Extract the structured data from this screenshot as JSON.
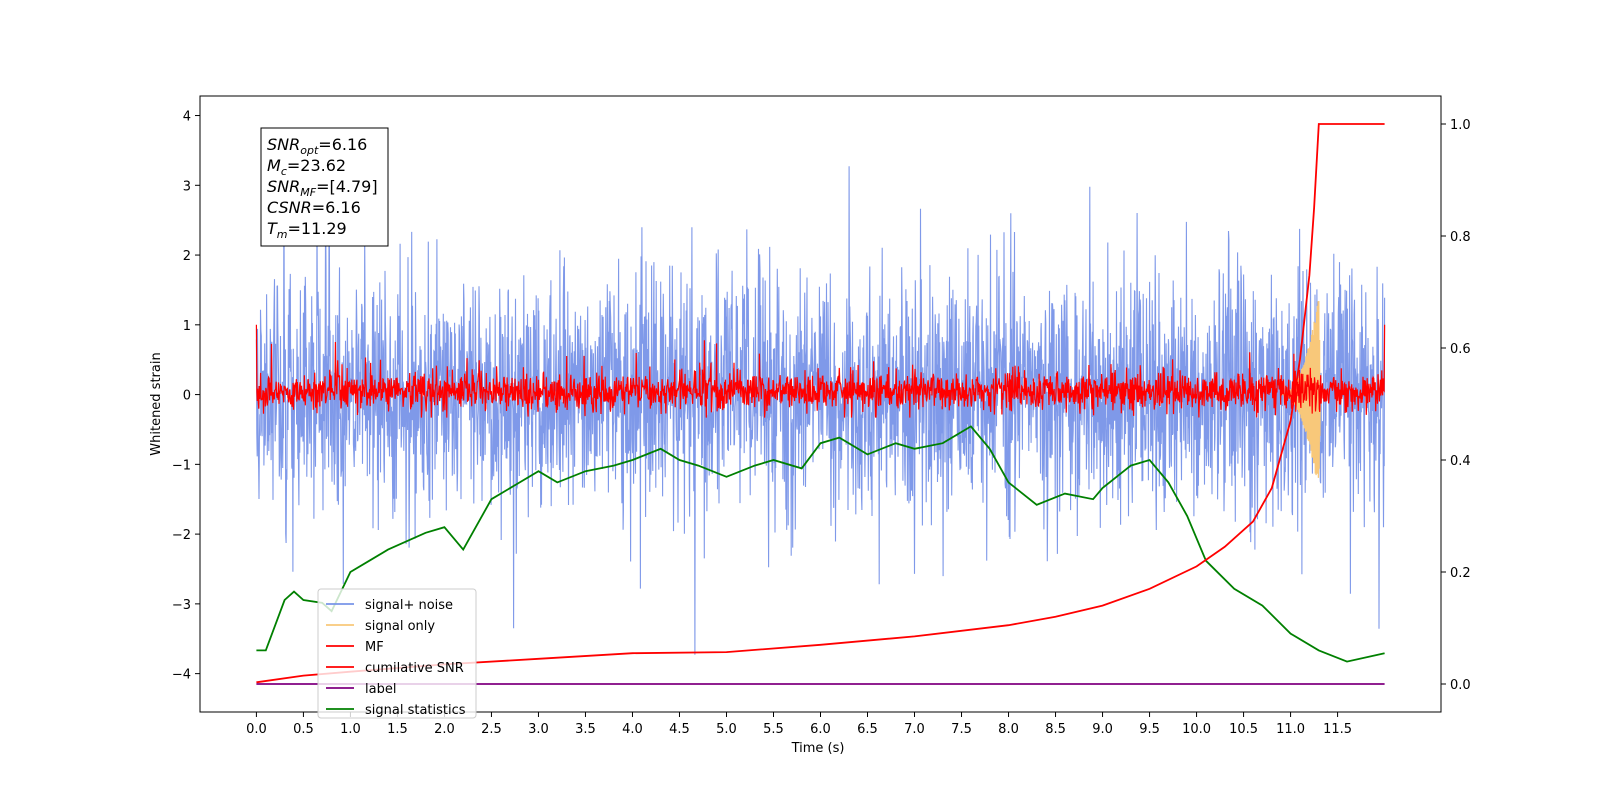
{
  "chart_data": {
    "type": "line",
    "xlabel": "Time (s)",
    "ylabel": "Whitened strain",
    "xlim": [
      -0.6,
      12.6
    ],
    "ylim": [
      -4.55,
      4.28
    ],
    "ylim_right": [
      -0.05,
      1.05
    ],
    "x_ticks": [
      "0.0",
      "0.5",
      "1.0",
      "1.5",
      "2.0",
      "2.5",
      "3.0",
      "3.5",
      "4.0",
      "4.5",
      "5.0",
      "5.5",
      "6.0",
      "6.5",
      "7.0",
      "7.5",
      "8.0",
      "8.5",
      "9.0",
      "9.5",
      "10.0",
      "10.5",
      "11.0",
      "11.5"
    ],
    "y_ticks_left": [
      "4",
      "3",
      "2",
      "1",
      "0",
      "−1",
      "−2",
      "−3",
      "−4"
    ],
    "y_ticks_right": [
      "1.0",
      "0.8",
      "0.6",
      "0.4",
      "0.2",
      "0.0"
    ],
    "grid": false,
    "legend_position": "lower-left",
    "annotation": [
      {
        "base": "SNR",
        "sub": "opt",
        "rest": "=6.16"
      },
      {
        "base": "M",
        "sub": "c",
        "rest": "=23.62"
      },
      {
        "base": "SNR",
        "sub": "MF",
        "rest": "=[4.79]"
      },
      {
        "base": "CSNR",
        "sub": "",
        "rest": "=6.16"
      },
      {
        "base": "T",
        "sub": "m",
        "rest": "=11.29"
      }
    ],
    "series": [
      {
        "name": "signal+ noise",
        "color": "#7894e8",
        "axis": "left",
        "description": "white noise band roughly ±2.5 with spikes to about 3.9 and -4.1 over 0 to 12 s"
      },
      {
        "name": "signal only",
        "color": "#f8c87a",
        "axis": "left",
        "description": "chirp near 11.1-11.3 s with amplitude up to about 1.4"
      },
      {
        "name": "MF",
        "color": "#ff0000",
        "axis": "left",
        "description": "noisy band roughly -0.3 to 0.6 with peaks near 1.0 at 0 and 12 s"
      },
      {
        "name": "cumilative SNR",
        "color": "#ff0000",
        "axis": "right",
        "x": [
          0.0,
          0.5,
          1.0,
          2.0,
          3.0,
          4.0,
          5.0,
          6.0,
          7.0,
          8.0,
          8.5,
          9.0,
          9.5,
          10.0,
          10.3,
          10.6,
          10.8,
          11.0,
          11.1,
          11.2,
          11.25,
          11.3,
          12.0
        ],
        "values": [
          0.003,
          0.015,
          0.022,
          0.035,
          0.045,
          0.055,
          0.057,
          0.07,
          0.085,
          0.105,
          0.12,
          0.14,
          0.17,
          0.21,
          0.245,
          0.29,
          0.35,
          0.47,
          0.58,
          0.73,
          0.85,
          1.0,
          1.0
        ]
      },
      {
        "name": "label",
        "color": "#800080",
        "axis": "right",
        "x": [
          0.0,
          12.0
        ],
        "values": [
          0.0,
          0.0
        ]
      },
      {
        "name": "signal statistics",
        "color": "#008000",
        "axis": "right",
        "x": [
          0.0,
          0.1,
          0.3,
          0.4,
          0.5,
          0.7,
          0.8,
          1.0,
          1.2,
          1.4,
          1.6,
          1.8,
          2.0,
          2.2,
          2.5,
          2.8,
          3.0,
          3.2,
          3.5,
          3.8,
          4.0,
          4.3,
          4.5,
          4.7,
          5.0,
          5.3,
          5.5,
          5.8,
          6.0,
          6.2,
          6.5,
          6.8,
          7.0,
          7.3,
          7.6,
          7.8,
          8.0,
          8.3,
          8.6,
          8.9,
          9.0,
          9.3,
          9.5,
          9.7,
          9.9,
          10.1,
          10.4,
          10.7,
          11.0,
          11.3,
          11.6,
          12.0
        ],
        "values": [
          0.06,
          0.06,
          0.15,
          0.165,
          0.15,
          0.145,
          0.13,
          0.2,
          0.22,
          0.24,
          0.255,
          0.27,
          0.28,
          0.24,
          0.33,
          0.36,
          0.38,
          0.36,
          0.38,
          0.39,
          0.4,
          0.42,
          0.4,
          0.39,
          0.37,
          0.39,
          0.4,
          0.385,
          0.43,
          0.44,
          0.41,
          0.43,
          0.42,
          0.43,
          0.46,
          0.42,
          0.36,
          0.32,
          0.34,
          0.33,
          0.35,
          0.39,
          0.4,
          0.36,
          0.3,
          0.22,
          0.17,
          0.14,
          0.09,
          0.06,
          0.04,
          0.055
        ]
      }
    ]
  }
}
